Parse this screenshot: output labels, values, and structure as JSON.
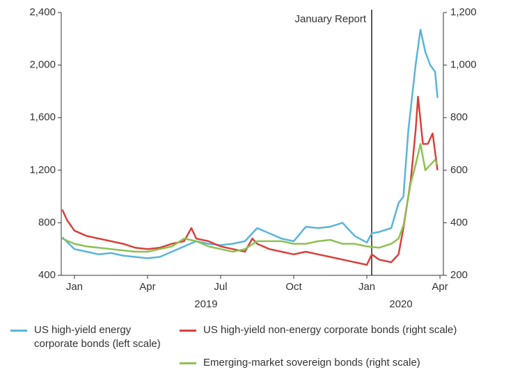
{
  "chart_data": {
    "type": "line",
    "xlim": [
      -0.54,
      15.14
    ],
    "xticks": [
      {
        "value": 0,
        "label": "Jan"
      },
      {
        "value": 3,
        "label": "Apr"
      },
      {
        "value": 6,
        "label": "Jul"
      },
      {
        "value": 9,
        "label": "Oct"
      },
      {
        "value": 12,
        "label": "Jan"
      },
      {
        "value": 15,
        "label": "Apr"
      }
    ],
    "year_labels": [
      {
        "value": 5.4,
        "label": "2019"
      },
      {
        "value": 13.4,
        "label": "2020"
      }
    ],
    "ylim": [
      400,
      2400
    ],
    "yticks": [
      400,
      {
        "value": 800,
        "label": "800"
      },
      {
        "value": 1200,
        "label": "1,200"
      },
      {
        "value": 1600,
        "label": "1,600"
      },
      {
        "value": 2000,
        "label": "2,000"
      },
      {
        "value": 2400,
        "label": "2,400"
      }
    ],
    "y2lim": [
      200,
      1200
    ],
    "y2ticks": [
      200,
      400,
      600,
      800,
      {
        "value": 1000,
        "label": "1,000"
      },
      {
        "value": 1200,
        "label": "1,200"
      }
    ],
    "annotation": {
      "text": "January Report",
      "x": 12.2
    },
    "series": [
      {
        "name": "US high-yield energy corporate bonds (left scale)",
        "color": "#5ab4dc",
        "axis": "y",
        "x": [
          -0.5,
          0,
          0.5,
          1,
          1.5,
          2,
          2.5,
          3,
          3.5,
          4,
          4.5,
          5,
          5.5,
          6,
          6.5,
          7,
          7.5,
          8,
          8.5,
          9,
          9.5,
          10,
          10.5,
          11,
          11.5,
          12,
          12.2,
          12.5,
          13,
          13.3,
          13.5,
          13.7,
          14,
          14.2,
          14.4,
          14.6,
          14.8,
          14.9
        ],
        "values": [
          690,
          600,
          580,
          560,
          570,
          550,
          540,
          530,
          540,
          580,
          620,
          660,
          640,
          630,
          640,
          660,
          760,
          720,
          680,
          660,
          770,
          760,
          770,
          800,
          700,
          650,
          720,
          730,
          760,
          950,
          1000,
          1500,
          2000,
          2270,
          2100,
          2000,
          1950,
          1750
        ]
      },
      {
        "name": "US high-yield non-energy corporate bonds (right scale)",
        "color": "#d9403a",
        "axis": "y2",
        "x": [
          -0.5,
          -0.3,
          0,
          0.5,
          1,
          1.5,
          2,
          2.5,
          3,
          3.5,
          4,
          4.5,
          4.8,
          5,
          5.5,
          6,
          6.5,
          7,
          7.3,
          7.5,
          8,
          8.5,
          9,
          9.5,
          10,
          10.5,
          11,
          11.5,
          12,
          12.2,
          12.5,
          13,
          13.3,
          13.5,
          13.8,
          14,
          14.1,
          14.3,
          14.5,
          14.7,
          14.9
        ],
        "values": [
          450,
          410,
          370,
          350,
          340,
          330,
          320,
          305,
          300,
          305,
          320,
          330,
          380,
          340,
          330,
          310,
          300,
          290,
          340,
          320,
          300,
          290,
          280,
          290,
          280,
          270,
          260,
          250,
          240,
          280,
          260,
          250,
          280,
          380,
          560,
          750,
          880,
          700,
          700,
          740,
          600
        ]
      },
      {
        "name": "Emerging-market sovereign bonds (right scale)",
        "color": "#8cc152",
        "axis": "y2",
        "x": [
          -0.5,
          0,
          0.5,
          1,
          1.5,
          2,
          2.5,
          3,
          3.5,
          4,
          4.5,
          5,
          5.5,
          6,
          6.5,
          7,
          7.5,
          8,
          8.5,
          9,
          9.5,
          10,
          10.5,
          11,
          11.5,
          12,
          12.5,
          13,
          13.3,
          13.5,
          13.8,
          14,
          14.2,
          14.4,
          14.6,
          14.8,
          14.9
        ],
        "values": [
          340,
          320,
          310,
          305,
          300,
          295,
          290,
          290,
          300,
          310,
          340,
          330,
          310,
          300,
          290,
          300,
          330,
          330,
          330,
          320,
          320,
          330,
          335,
          320,
          320,
          310,
          305,
          320,
          340,
          390,
          550,
          620,
          700,
          600,
          620,
          640,
          620
        ]
      }
    ]
  }
}
